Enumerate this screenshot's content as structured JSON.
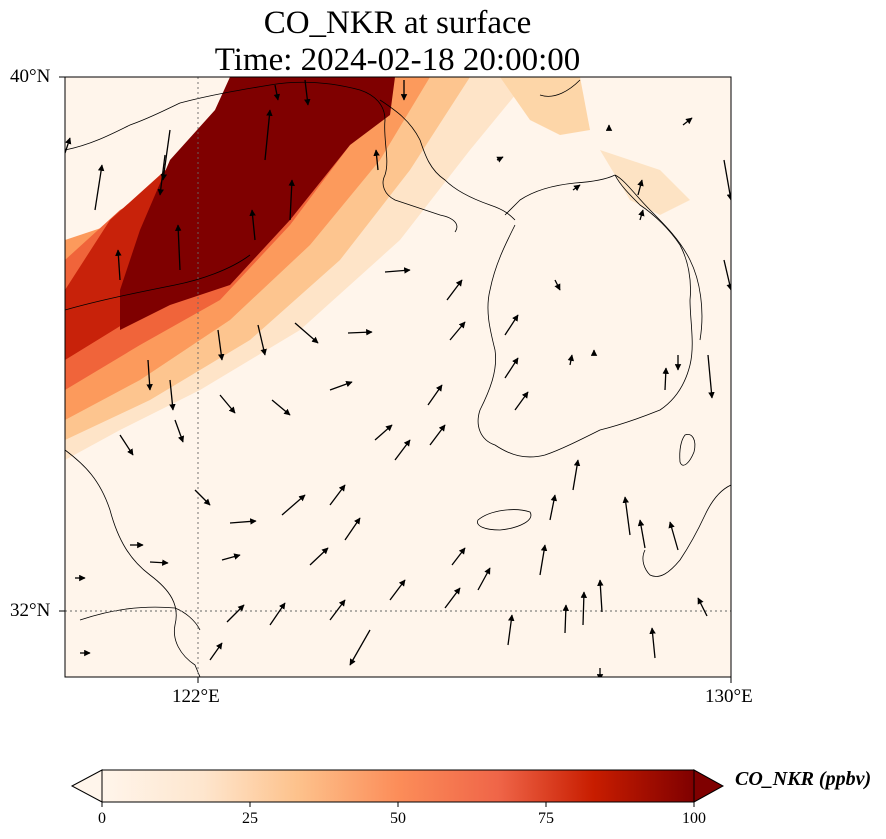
{
  "title_line1": "CO_NKR at surface",
  "title_line2": "Time: 2024-02-18 20:00:00",
  "lat_labels": [
    "40°N",
    "32°N"
  ],
  "lon_labels": [
    "122°E",
    "130°E"
  ],
  "colorbar": {
    "label": "CO_NKR (ppbv)",
    "ticks": [
      "0",
      "25",
      "50",
      "75",
      "100"
    ],
    "colors": [
      "#fff5eb",
      "#fdd9b2",
      "#fdab67",
      "#f5753a",
      "#e0451f",
      "#b31b06",
      "#7f0000"
    ]
  },
  "chart_data": {
    "type": "heatmap",
    "variable": "CO_NKR",
    "units": "ppbv",
    "xlim": [
      118,
      130
    ],
    "ylim": [
      31,
      40
    ],
    "clim": [
      0,
      100
    ],
    "features": [
      "CO plume high concentration over Bohai / Shandong region",
      "wind vectors"
    ],
    "colormap": "OrRd"
  }
}
